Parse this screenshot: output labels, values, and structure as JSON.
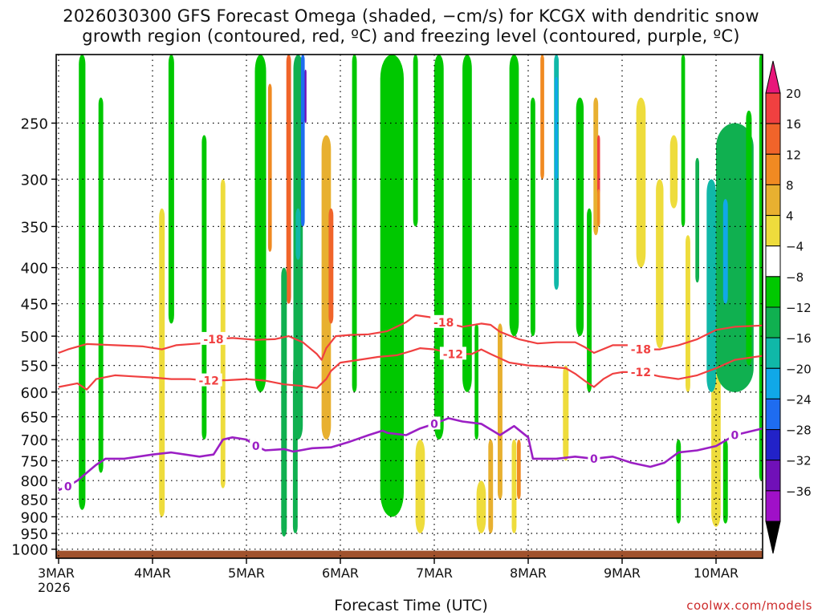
{
  "title_line1": "2026030300 GFS Forecast Omega (shaded, −cm/s) for KCGX with dendritic snow",
  "title_line2": "growth region (contoured, red, ºC) and freezing level (contoured, purple, ºC)",
  "x_axis_label": "Forecast Time (UTC)",
  "credit": "coolwx.com/models",
  "colors": {
    "dgz_contour": "#f04040",
    "freezing_contour": "#9b1fc4",
    "ground": "#a0522d"
  },
  "chart_data": {
    "type": "heatmap",
    "title": "2026030300 GFS Forecast Omega (shaded, −cm/s) for KCGX with dendritic snow growth region (contoured, red, ºC) and freezing level (contoured, purple, ºC)",
    "xlabel": "Forecast Time (UTC)",
    "ylabel": "",
    "x_ticks": [
      {
        "label": "3MAR",
        "sub": "2026",
        "day": 0
      },
      {
        "label": "4MAR",
        "sub": "",
        "day": 1
      },
      {
        "label": "5MAR",
        "sub": "",
        "day": 2
      },
      {
        "label": "6MAR",
        "sub": "",
        "day": 3
      },
      {
        "label": "7MAR",
        "sub": "",
        "day": 4
      },
      {
        "label": "8MAR",
        "sub": "",
        "day": 5
      },
      {
        "label": "9MAR",
        "sub": "",
        "day": 6
      },
      {
        "label": "10MAR",
        "sub": "",
        "day": 7
      }
    ],
    "y_ticks": [
      250,
      300,
      350,
      400,
      450,
      500,
      550,
      600,
      650,
      700,
      750,
      800,
      850,
      900,
      950,
      1000
    ],
    "y_axis": "pressure (hPa), log scale, inverted",
    "xlim_days": [
      0,
      7.5
    ],
    "ylim_hpa": [
      200,
      1030
    ],
    "grid": true,
    "colorbar": {
      "labels": [
        "20",
        "16",
        "12",
        "8",
        "4",
        "−4",
        "−8",
        "−12",
        "−16",
        "−20",
        "−24",
        "−28",
        "−32",
        "−36"
      ],
      "colors": [
        "#e8177a",
        "#f04040",
        "#f0642a",
        "#f08a22",
        "#e8b030",
        "#eedc3c",
        "#ffffff",
        "#00c800",
        "#10b050",
        "#10b8a8",
        "#10a8e8",
        "#1e6cf0",
        "#2222c8",
        "#7010b8",
        "#a010c8",
        "#a8a8a8",
        "#000000"
      ]
    },
    "omega_features": [
      {
        "day": 0.25,
        "p_top": 200,
        "p_bot": 880,
        "width": 0.07,
        "v": -5
      },
      {
        "day": 0.45,
        "p_top": 230,
        "p_bot": 780,
        "width": 0.05,
        "v": -6
      },
      {
        "day": 1.1,
        "p_top": 330,
        "p_bot": 900,
        "width": 0.06,
        "v": 5
      },
      {
        "day": 1.2,
        "p_top": 200,
        "p_bot": 480,
        "width": 0.06,
        "v": -5
      },
      {
        "day": 1.55,
        "p_top": 260,
        "p_bot": 700,
        "width": 0.05,
        "v": -6
      },
      {
        "day": 1.75,
        "p_top": 300,
        "p_bot": 820,
        "width": 0.05,
        "v": 5
      },
      {
        "day": 2.15,
        "p_top": 200,
        "p_bot": 600,
        "width": 0.12,
        "v": -6
      },
      {
        "day": 2.25,
        "p_top": 220,
        "p_bot": 380,
        "width": 0.04,
        "v": 10
      },
      {
        "day": 2.45,
        "p_top": 200,
        "p_bot": 450,
        "width": 0.05,
        "v": 13
      },
      {
        "day": 2.4,
        "p_top": 400,
        "p_bot": 960,
        "width": 0.06,
        "v": -9
      },
      {
        "day": 2.55,
        "p_top": 200,
        "p_bot": 700,
        "width": 0.1,
        "v": -9
      },
      {
        "day": 2.6,
        "p_top": 200,
        "p_bot": 350,
        "width": 0.04,
        "v": -20
      },
      {
        "day": 2.63,
        "p_top": 210,
        "p_bot": 250,
        "width": 0.02,
        "v": -30
      },
      {
        "day": 2.55,
        "p_top": 330,
        "p_bot": 390,
        "width": 0.05,
        "v": -15
      },
      {
        "day": 2.52,
        "p_top": 550,
        "p_bot": 950,
        "width": 0.05,
        "v": -10
      },
      {
        "day": 2.85,
        "p_top": 260,
        "p_bot": 700,
        "width": 0.1,
        "v": 6
      },
      {
        "day": 2.9,
        "p_top": 330,
        "p_bot": 480,
        "width": 0.05,
        "v": 13
      },
      {
        "day": 3.15,
        "p_top": 200,
        "p_bot": 600,
        "width": 0.05,
        "v": -6
      },
      {
        "day": 3.55,
        "p_top": 200,
        "p_bot": 900,
        "width": 0.25,
        "v": -6
      },
      {
        "day": 3.85,
        "p_top": 700,
        "p_bot": 950,
        "width": 0.1,
        "v": 5
      },
      {
        "day": 3.8,
        "p_top": 200,
        "p_bot": 350,
        "width": 0.05,
        "v": -6
      },
      {
        "day": 4.05,
        "p_top": 200,
        "p_bot": 700,
        "width": 0.1,
        "v": -6
      },
      {
        "day": 4.35,
        "p_top": 200,
        "p_bot": 600,
        "width": 0.1,
        "v": -6
      },
      {
        "day": 4.45,
        "p_top": 480,
        "p_bot": 700,
        "width": 0.04,
        "v": -6
      },
      {
        "day": 4.5,
        "p_top": 800,
        "p_bot": 950,
        "width": 0.1,
        "v": 5
      },
      {
        "day": 4.6,
        "p_top": 700,
        "p_bot": 950,
        "width": 0.05,
        "v": 6
      },
      {
        "day": 4.7,
        "p_top": 480,
        "p_bot": 850,
        "width": 0.05,
        "v": 6
      },
      {
        "day": 4.85,
        "p_top": 700,
        "p_bot": 950,
        "width": 0.05,
        "v": 5
      },
      {
        "day": 4.85,
        "p_top": 200,
        "p_bot": 500,
        "width": 0.1,
        "v": -6
      },
      {
        "day": 4.9,
        "p_top": 700,
        "p_bot": 850,
        "width": 0.04,
        "v": 8
      },
      {
        "day": 5.05,
        "p_top": 230,
        "p_bot": 500,
        "width": 0.05,
        "v": -6
      },
      {
        "day": 5.15,
        "p_top": 200,
        "p_bot": 300,
        "width": 0.04,
        "v": 8
      },
      {
        "day": 5.3,
        "p_top": 200,
        "p_bot": 430,
        "width": 0.05,
        "v": -12
      },
      {
        "day": 5.3,
        "p_top": 215,
        "p_bot": 300,
        "width": 0.03,
        "v": -18
      },
      {
        "day": 5.55,
        "p_top": 230,
        "p_bot": 500,
        "width": 0.08,
        "v": -6
      },
      {
        "day": 5.72,
        "p_top": 230,
        "p_bot": 360,
        "width": 0.05,
        "v": 7
      },
      {
        "day": 5.75,
        "p_top": 260,
        "p_bot": 320,
        "width": 0.03,
        "v": 16
      },
      {
        "day": 5.75,
        "p_top": 310,
        "p_bot": 350,
        "width": 0.03,
        "v": 11
      },
      {
        "day": 5.65,
        "p_top": 330,
        "p_bot": 600,
        "width": 0.05,
        "v": -6
      },
      {
        "day": 5.4,
        "p_top": 550,
        "p_bot": 750,
        "width": 0.06,
        "v": 5
      },
      {
        "day": 6.2,
        "p_top": 230,
        "p_bot": 400,
        "width": 0.1,
        "v": 5
      },
      {
        "day": 6.4,
        "p_top": 300,
        "p_bot": 520,
        "width": 0.08,
        "v": 5
      },
      {
        "day": 6.55,
        "p_top": 260,
        "p_bot": 330,
        "width": 0.08,
        "v": 5
      },
      {
        "day": 6.65,
        "p_top": 200,
        "p_bot": 350,
        "width": 0.04,
        "v": -6
      },
      {
        "day": 6.7,
        "p_top": 360,
        "p_bot": 600,
        "width": 0.05,
        "v": 5
      },
      {
        "day": 6.8,
        "p_top": 280,
        "p_bot": 420,
        "width": 0.04,
        "v": -10
      },
      {
        "day": 6.6,
        "p_top": 700,
        "p_bot": 920,
        "width": 0.05,
        "v": -6
      },
      {
        "day": 7.0,
        "p_top": 520,
        "p_bot": 930,
        "width": 0.1,
        "v": 5
      },
      {
        "day": 7.1,
        "p_top": 700,
        "p_bot": 920,
        "width": 0.05,
        "v": -6
      },
      {
        "day": 7.2,
        "p_top": 250,
        "p_bot": 600,
        "width": 0.4,
        "v": -9
      },
      {
        "day": 6.95,
        "p_top": 300,
        "p_bot": 600,
        "width": 0.1,
        "v": -12
      },
      {
        "day": 7.1,
        "p_top": 320,
        "p_bot": 450,
        "width": 0.05,
        "v": -16
      },
      {
        "day": 7.35,
        "p_top": 240,
        "p_bot": 550,
        "width": 0.06,
        "v": -6
      },
      {
        "day": 7.48,
        "p_top": 200,
        "p_bot": 800,
        "width": 0.04,
        "v": -6
      }
    ],
    "dgz_contours": [
      {
        "label": "-18",
        "points": [
          [
            0.0,
            528
          ],
          [
            0.1,
            522
          ],
          [
            0.3,
            513
          ],
          [
            0.6,
            515
          ],
          [
            0.9,
            517
          ],
          [
            1.1,
            522
          ],
          [
            1.25,
            515
          ],
          [
            1.5,
            512
          ],
          [
            1.65,
            505
          ],
          [
            1.85,
            503
          ],
          [
            2.1,
            506
          ],
          [
            2.3,
            505
          ],
          [
            2.45,
            500
          ],
          [
            2.6,
            510
          ],
          [
            2.75,
            530
          ],
          [
            2.8,
            540
          ],
          [
            2.85,
            520
          ],
          [
            2.95,
            500
          ],
          [
            3.1,
            498
          ],
          [
            3.3,
            497
          ],
          [
            3.5,
            492
          ],
          [
            3.7,
            478
          ],
          [
            3.8,
            467
          ],
          [
            3.95,
            470
          ],
          [
            4.1,
            478
          ],
          [
            4.3,
            485
          ],
          [
            4.5,
            480
          ],
          [
            4.6,
            482
          ],
          [
            4.7,
            493
          ],
          [
            4.9,
            505
          ],
          [
            5.1,
            512
          ],
          [
            5.3,
            510
          ],
          [
            5.5,
            510
          ],
          [
            5.6,
            518
          ],
          [
            5.7,
            528
          ],
          [
            5.9,
            515
          ],
          [
            6.1,
            515
          ],
          [
            6.2,
            522
          ],
          [
            6.4,
            522
          ],
          [
            6.6,
            515
          ],
          [
            6.8,
            505
          ],
          [
            7.0,
            490
          ],
          [
            7.2,
            485
          ],
          [
            7.5,
            483
          ]
        ]
      },
      {
        "label": "-12",
        "points": [
          [
            0.0,
            590
          ],
          [
            0.2,
            583
          ],
          [
            0.3,
            595
          ],
          [
            0.4,
            575
          ],
          [
            0.6,
            568
          ],
          [
            0.8,
            570
          ],
          [
            1.0,
            572
          ],
          [
            1.2,
            575
          ],
          [
            1.4,
            575
          ],
          [
            1.6,
            578
          ],
          [
            1.8,
            577
          ],
          [
            2.0,
            575
          ],
          [
            2.2,
            578
          ],
          [
            2.4,
            585
          ],
          [
            2.6,
            588
          ],
          [
            2.75,
            592
          ],
          [
            2.85,
            575
          ],
          [
            2.9,
            560
          ],
          [
            3.0,
            545
          ],
          [
            3.2,
            540
          ],
          [
            3.4,
            535
          ],
          [
            3.6,
            532
          ],
          [
            3.75,
            525
          ],
          [
            3.85,
            520
          ],
          [
            4.0,
            522
          ],
          [
            4.2,
            530
          ],
          [
            4.4,
            530
          ],
          [
            4.5,
            522
          ],
          [
            4.6,
            530
          ],
          [
            4.8,
            545
          ],
          [
            5.0,
            550
          ],
          [
            5.2,
            552
          ],
          [
            5.4,
            555
          ],
          [
            5.5,
            565
          ],
          [
            5.6,
            578
          ],
          [
            5.7,
            590
          ],
          [
            5.8,
            575
          ],
          [
            5.9,
            565
          ],
          [
            6.0,
            562
          ],
          [
            6.2,
            562
          ],
          [
            6.4,
            570
          ],
          [
            6.6,
            575
          ],
          [
            6.8,
            568
          ],
          [
            7.0,
            555
          ],
          [
            7.2,
            540
          ],
          [
            7.5,
            533
          ]
        ]
      }
    ],
    "freezing_contour": {
      "label": "0",
      "points": [
        [
          0.0,
          825
        ],
        [
          0.1,
          815
        ],
        [
          0.2,
          800
        ],
        [
          0.4,
          760
        ],
        [
          0.5,
          745
        ],
        [
          0.7,
          745
        ],
        [
          1.0,
          735
        ],
        [
          1.2,
          730
        ],
        [
          1.5,
          740
        ],
        [
          1.65,
          735
        ],
        [
          1.75,
          700
        ],
        [
          1.85,
          695
        ],
        [
          2.0,
          700
        ],
        [
          2.1,
          715
        ],
        [
          2.2,
          725
        ],
        [
          2.4,
          722
        ],
        [
          2.5,
          728
        ],
        [
          2.7,
          720
        ],
        [
          2.9,
          718
        ],
        [
          3.1,
          705
        ],
        [
          3.3,
          690
        ],
        [
          3.45,
          680
        ],
        [
          3.5,
          685
        ],
        [
          3.7,
          690
        ],
        [
          3.85,
          675
        ],
        [
          4.0,
          665
        ],
        [
          4.15,
          653
        ],
        [
          4.3,
          660
        ],
        [
          4.5,
          665
        ],
        [
          4.7,
          690
        ],
        [
          4.85,
          670
        ],
        [
          5.0,
          695
        ],
        [
          5.05,
          745
        ],
        [
          5.3,
          745
        ],
        [
          5.5,
          740
        ],
        [
          5.7,
          745
        ],
        [
          5.9,
          740
        ],
        [
          6.1,
          755
        ],
        [
          6.3,
          765
        ],
        [
          6.45,
          755
        ],
        [
          6.6,
          730
        ],
        [
          6.8,
          725
        ],
        [
          7.0,
          715
        ],
        [
          7.2,
          690
        ],
        [
          7.4,
          680
        ],
        [
          7.5,
          675
        ]
      ]
    },
    "ground_pressure_hpa": 1005
  }
}
